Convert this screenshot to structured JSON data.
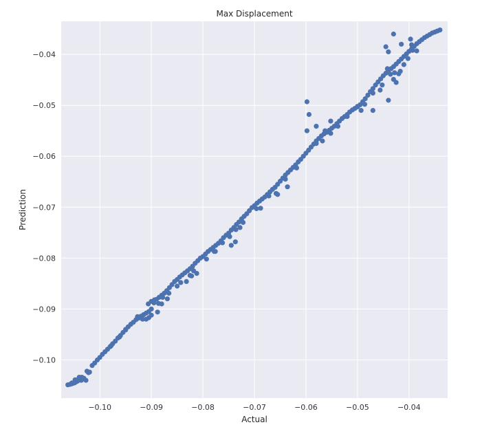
{
  "chart_data": {
    "type": "scatter",
    "title": "Max Displacement",
    "xlabel": "Actual",
    "ylabel": "Prediction",
    "xlim": [
      -0.1075,
      -0.0325
    ],
    "ylim": [
      -0.1075,
      -0.0335
    ],
    "x_ticks": [
      -0.1,
      -0.09,
      -0.08,
      -0.07,
      -0.06,
      -0.05,
      -0.04
    ],
    "y_ticks": [
      -0.1,
      -0.09,
      -0.08,
      -0.07,
      -0.06,
      -0.05,
      -0.04
    ],
    "x_tick_labels": [
      "−0.10",
      "−0.09",
      "−0.08",
      "−0.07",
      "−0.06",
      "−0.05",
      "−0.04"
    ],
    "y_tick_labels": [
      "−0.10",
      "−0.09",
      "−0.08",
      "−0.07",
      "−0.06",
      "−0.05",
      "−0.04"
    ],
    "grid": true,
    "colors": {
      "background": "#eaeaf2",
      "grid": "#ffffff",
      "marker": "#4c72b0"
    },
    "series": [
      {
        "values": [
          [
            -0.1062,
            -0.1049
          ],
          [
            -0.1058,
            -0.1048
          ],
          [
            -0.1055,
            -0.1047
          ],
          [
            -0.1052,
            -0.1046
          ],
          [
            -0.1049,
            -0.1045
          ],
          [
            -0.1046,
            -0.1043
          ],
          [
            -0.1044,
            -0.1042
          ],
          [
            -0.1041,
            -0.104
          ],
          [
            -0.1039,
            -0.1038
          ],
          [
            -0.1037,
            -0.1036
          ],
          [
            -0.1035,
            -0.1034
          ],
          [
            -0.104,
            -0.1034
          ],
          [
            -0.1036,
            -0.104
          ],
          [
            -0.1043,
            -0.1039
          ],
          [
            -0.1025,
            -0.1022
          ],
          [
            -0.1022,
            -0.1025
          ],
          [
            -0.1015,
            -0.1011
          ],
          [
            -0.101,
            -0.1006
          ],
          [
            -0.1005,
            -0.1
          ],
          [
            -0.1,
            -0.0995
          ],
          [
            -0.0995,
            -0.0989
          ],
          [
            -0.099,
            -0.0984
          ],
          [
            -0.0985,
            -0.0979
          ],
          [
            -0.098,
            -0.0974
          ],
          [
            -0.0975,
            -0.0968
          ],
          [
            -0.097,
            -0.0963
          ],
          [
            -0.0965,
            -0.0957
          ],
          [
            -0.096,
            -0.0952
          ],
          [
            -0.0955,
            -0.0946
          ],
          [
            -0.095,
            -0.0941
          ],
          [
            -0.0945,
            -0.0935
          ],
          [
            -0.094,
            -0.093
          ],
          [
            -0.0935,
            -0.0926
          ],
          [
            -0.093,
            -0.0921
          ],
          [
            -0.0925,
            -0.0918
          ],
          [
            -0.092,
            -0.0914
          ],
          [
            -0.0915,
            -0.0911
          ],
          [
            -0.091,
            -0.0908
          ],
          [
            -0.0905,
            -0.0905
          ],
          [
            -0.09,
            -0.09
          ],
          [
            -0.091,
            -0.092
          ],
          [
            -0.0905,
            -0.0917
          ],
          [
            -0.09,
            -0.0912
          ],
          [
            -0.0895,
            -0.0888
          ],
          [
            -0.089,
            -0.0881
          ],
          [
            -0.0885,
            -0.0877
          ],
          [
            -0.088,
            -0.0873
          ],
          [
            -0.0875,
            -0.0869
          ],
          [
            -0.087,
            -0.0864
          ],
          [
            -0.0865,
            -0.0858
          ],
          [
            -0.086,
            -0.0852
          ],
          [
            -0.0855,
            -0.0846
          ],
          [
            -0.085,
            -0.0842
          ],
          [
            -0.0845,
            -0.0837
          ],
          [
            -0.084,
            -0.0833
          ],
          [
            -0.0835,
            -0.0829
          ],
          [
            -0.083,
            -0.0825
          ],
          [
            -0.0825,
            -0.0821
          ],
          [
            -0.082,
            -0.0816
          ],
          [
            -0.0815,
            -0.081
          ],
          [
            -0.081,
            -0.0805
          ],
          [
            -0.0805,
            -0.08
          ],
          [
            -0.08,
            -0.0797
          ],
          [
            -0.0795,
            -0.0792
          ],
          [
            -0.079,
            -0.0787
          ],
          [
            -0.0785,
            -0.0783
          ],
          [
            -0.078,
            -0.0779
          ],
          [
            -0.0775,
            -0.0775
          ],
          [
            -0.077,
            -0.0771
          ],
          [
            -0.0765,
            -0.0766
          ],
          [
            -0.076,
            -0.076
          ],
          [
            -0.0755,
            -0.0755
          ],
          [
            -0.075,
            -0.0751
          ],
          [
            -0.0745,
            -0.0745
          ],
          [
            -0.074,
            -0.074
          ],
          [
            -0.0735,
            -0.0734
          ],
          [
            -0.073,
            -0.0729
          ],
          [
            -0.0725,
            -0.0723
          ],
          [
            -0.072,
            -0.0718
          ],
          [
            -0.0715,
            -0.0713
          ],
          [
            -0.071,
            -0.0707
          ],
          [
            -0.0705,
            -0.0701
          ],
          [
            -0.07,
            -0.0697
          ],
          [
            -0.0695,
            -0.0692
          ],
          [
            -0.069,
            -0.0688
          ],
          [
            -0.0685,
            -0.0684
          ],
          [
            -0.068,
            -0.068
          ],
          [
            -0.0675,
            -0.0675
          ],
          [
            -0.067,
            -0.067
          ],
          [
            -0.0665,
            -0.0665
          ],
          [
            -0.066,
            -0.0661
          ],
          [
            -0.0655,
            -0.0655
          ],
          [
            -0.065,
            -0.0649
          ],
          [
            -0.0645,
            -0.0643
          ],
          [
            -0.064,
            -0.0637
          ],
          [
            -0.0635,
            -0.0632
          ],
          [
            -0.063,
            -0.0627
          ],
          [
            -0.0625,
            -0.0622
          ],
          [
            -0.062,
            -0.0617
          ],
          [
            -0.0615,
            -0.0611
          ],
          [
            -0.061,
            -0.0606
          ],
          [
            -0.0605,
            -0.06
          ],
          [
            -0.06,
            -0.0594
          ],
          [
            -0.0595,
            -0.0588
          ],
          [
            -0.059,
            -0.0582
          ],
          [
            -0.0585,
            -0.0576
          ],
          [
            -0.058,
            -0.057
          ],
          [
            -0.0575,
            -0.0565
          ],
          [
            -0.057,
            -0.056
          ],
          [
            -0.0565,
            -0.0556
          ],
          [
            -0.056,
            -0.0553
          ],
          [
            -0.0555,
            -0.0549
          ],
          [
            -0.055,
            -0.0545
          ],
          [
            -0.0545,
            -0.0541
          ],
          [
            -0.054,
            -0.0536
          ],
          [
            -0.0535,
            -0.0531
          ],
          [
            -0.053,
            -0.0526
          ],
          [
            -0.0525,
            -0.0522
          ],
          [
            -0.052,
            -0.0518
          ],
          [
            -0.0515,
            -0.0513
          ],
          [
            -0.051,
            -0.0509
          ],
          [
            -0.0505,
            -0.0506
          ],
          [
            -0.05,
            -0.0503
          ],
          [
            -0.0495,
            -0.0499
          ],
          [
            -0.049,
            -0.0493
          ],
          [
            -0.0485,
            -0.0487
          ],
          [
            -0.048,
            -0.048
          ],
          [
            -0.0475,
            -0.0473
          ],
          [
            -0.047,
            -0.0467
          ],
          [
            -0.0465,
            -0.046
          ],
          [
            -0.046,
            -0.0454
          ],
          [
            -0.0455,
            -0.0448
          ],
          [
            -0.045,
            -0.0442
          ],
          [
            -0.0445,
            -0.0437
          ],
          [
            -0.044,
            -0.0432
          ],
          [
            -0.0435,
            -0.0428
          ],
          [
            -0.043,
            -0.0424
          ],
          [
            -0.0425,
            -0.0419
          ],
          [
            -0.042,
            -0.0414
          ],
          [
            -0.0415,
            -0.0409
          ],
          [
            -0.041,
            -0.0404
          ],
          [
            -0.0405,
            -0.0399
          ],
          [
            -0.04,
            -0.0394
          ],
          [
            -0.0395,
            -0.0389
          ],
          [
            -0.039,
            -0.0384
          ],
          [
            -0.0385,
            -0.0379
          ],
          [
            -0.038,
            -0.0375
          ],
          [
            -0.0375,
            -0.0371
          ],
          [
            -0.037,
            -0.0367
          ],
          [
            -0.0365,
            -0.0364
          ],
          [
            -0.036,
            -0.0361
          ],
          [
            -0.0355,
            -0.0358
          ],
          [
            -0.035,
            -0.0356
          ],
          [
            -0.0345,
            -0.0354
          ],
          [
            -0.034,
            -0.0352
          ],
          [
            -0.0894,
            -0.0882
          ],
          [
            -0.0886,
            -0.0889
          ],
          [
            -0.0878,
            -0.0877
          ],
          [
            -0.0866,
            -0.0869
          ],
          [
            -0.0843,
            -0.0848
          ],
          [
            -0.0825,
            -0.0834
          ],
          [
            -0.0818,
            -0.0825
          ],
          [
            -0.0793,
            -0.0802
          ],
          [
            -0.0778,
            -0.0787
          ],
          [
            -0.0762,
            -0.077
          ],
          [
            -0.0748,
            -0.0758
          ],
          [
            -0.0736,
            -0.0744
          ],
          [
            -0.0722,
            -0.073
          ],
          [
            -0.0696,
            -0.0703
          ],
          [
            -0.0672,
            -0.0678
          ],
          [
            -0.064,
            -0.0645
          ],
          [
            -0.0618,
            -0.0623
          ],
          [
            -0.058,
            -0.0575
          ],
          [
            -0.0568,
            -0.057
          ],
          [
            -0.0552,
            -0.0555
          ],
          [
            -0.0538,
            -0.0541
          ],
          [
            -0.052,
            -0.0522
          ],
          [
            -0.0493,
            -0.051
          ],
          [
            -0.0486,
            -0.0498
          ],
          [
            -0.047,
            -0.0476
          ],
          [
            -0.0452,
            -0.046
          ],
          [
            -0.0436,
            -0.0439
          ],
          [
            -0.0428,
            -0.0436
          ],
          [
            -0.041,
            -0.042
          ],
          [
            -0.0402,
            -0.0408
          ],
          [
            -0.0393,
            -0.0392
          ],
          [
            -0.0385,
            -0.0393
          ],
          [
            -0.0598,
            -0.0493
          ],
          [
            -0.0594,
            -0.0518
          ],
          [
            -0.0598,
            -0.055
          ],
          [
            -0.058,
            -0.0541
          ],
          [
            -0.0563,
            -0.055
          ],
          [
            -0.0552,
            -0.0531
          ],
          [
            -0.05,
            -0.0502
          ],
          [
            -0.047,
            -0.051
          ],
          [
            -0.0456,
            -0.047
          ],
          [
            -0.044,
            -0.049
          ],
          [
            -0.043,
            -0.0449
          ],
          [
            -0.0425,
            -0.0455
          ],
          [
            -0.042,
            -0.0438
          ],
          [
            -0.0395,
            -0.0381
          ],
          [
            -0.0397,
            -0.037
          ],
          [
            -0.0415,
            -0.038
          ],
          [
            -0.044,
            -0.0395
          ],
          [
            -0.0445,
            -0.0385
          ],
          [
            -0.043,
            -0.036
          ],
          [
            -0.0442,
            -0.0428
          ],
          [
            -0.0417,
            -0.0433
          ],
          [
            -0.0636,
            -0.066
          ],
          [
            -0.0658,
            -0.0673
          ],
          [
            -0.0655,
            -0.0675
          ],
          [
            -0.0688,
            -0.0702
          ],
          [
            -0.0728,
            -0.074
          ],
          [
            -0.0745,
            -0.0775
          ],
          [
            -0.0737,
            -0.0768
          ],
          [
            -0.0776,
            -0.0787
          ],
          [
            -0.0812,
            -0.083
          ],
          [
            -0.0822,
            -0.0835
          ],
          [
            -0.0832,
            -0.0846
          ],
          [
            -0.085,
            -0.0855
          ],
          [
            -0.0869,
            -0.088
          ],
          [
            -0.0888,
            -0.0906
          ],
          [
            -0.09,
            -0.0885
          ],
          [
            -0.0906,
            -0.089
          ],
          [
            -0.0917,
            -0.092
          ],
          [
            -0.0927,
            -0.0915
          ],
          [
            -0.088,
            -0.089
          ],
          [
            -0.095,
            -0.094
          ],
          [
            -0.0962,
            -0.0955
          ],
          [
            -0.0978,
            -0.0972
          ],
          [
            -0.1048,
            -0.1039
          ],
          [
            -0.1054,
            -0.1045
          ],
          [
            -0.1031,
            -0.1036
          ],
          [
            -0.1027,
            -0.104
          ],
          [
            -0.102,
            -0.1024
          ]
        ]
      }
    ]
  }
}
